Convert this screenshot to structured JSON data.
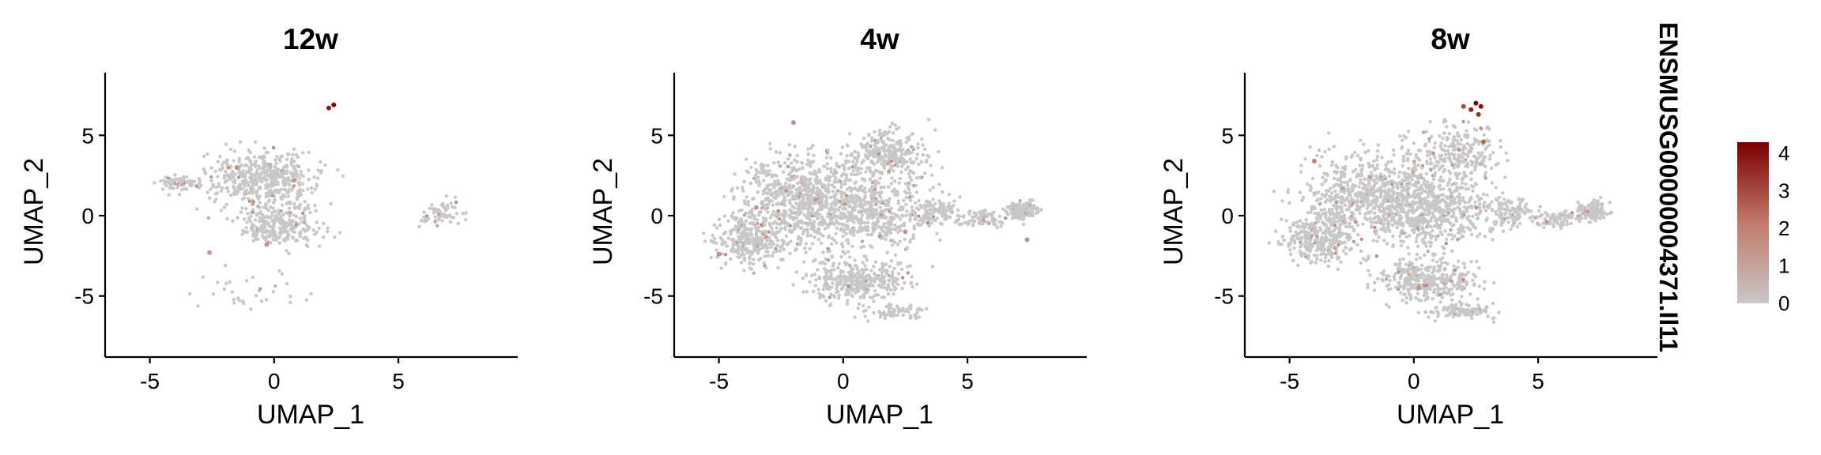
{
  "colors": {
    "low": "#c8c8c8",
    "high": "#7a0000",
    "axis": "#000000",
    "background": "#ffffff"
  },
  "legend": {
    "title": "ENSMUSG00000004371.Il11",
    "ticks": [
      "4",
      "3",
      "2",
      "1",
      "0"
    ],
    "placement": "right"
  },
  "chart_data": [
    {
      "type": "scatter",
      "title": "12w",
      "xlabel": "UMAP_1",
      "ylabel": "UMAP_2",
      "xlim": [
        -6.8,
        9.8
      ],
      "ylim": [
        -8.8,
        8.9
      ],
      "xticks": [
        "-5",
        "0",
        "5"
      ],
      "yticks": [
        "-5",
        "0",
        "5"
      ],
      "color_scale": [
        0,
        4.3
      ],
      "point_density": 0.35,
      "high_expression_points": [
        {
          "x": 2.4,
          "y": 6.9,
          "value": 4.2
        },
        {
          "x": 2.2,
          "y": 6.7,
          "value": 3.8
        },
        {
          "x": -1.5,
          "y": 3.0,
          "value": 1.5
        },
        {
          "x": 0.8,
          "y": 2.2,
          "value": 1.4
        },
        {
          "x": -0.3,
          "y": -1.8,
          "value": 1.3
        },
        {
          "x": -2.6,
          "y": -2.3,
          "value": 1.2
        }
      ]
    },
    {
      "type": "scatter",
      "title": "4w",
      "xlabel": "UMAP_1",
      "ylabel": "UMAP_2",
      "xlim": [
        -6.8,
        9.8
      ],
      "ylim": [
        -8.8,
        8.9
      ],
      "xticks": [
        "-5",
        "0",
        "5"
      ],
      "yticks": [
        "-5",
        "0",
        "5"
      ],
      "color_scale": [
        0,
        4.3
      ],
      "point_density": 1.0,
      "high_expression_points": [
        {
          "x": -5.0,
          "y": -2.4,
          "value": 1.6
        },
        {
          "x": -2.0,
          "y": 5.8,
          "value": 1.5
        },
        {
          "x": 2.5,
          "y": -1.0,
          "value": 1.4
        },
        {
          "x": 7.4,
          "y": -1.5,
          "value": 1.4
        },
        {
          "x": -3.5,
          "y": 0.5,
          "value": 1.3
        }
      ]
    },
    {
      "type": "scatter",
      "title": "8w",
      "xlabel": "UMAP_1",
      "ylabel": "UMAP_2",
      "xlim": [
        -6.8,
        9.8
      ],
      "ylim": [
        -8.8,
        8.9
      ],
      "xticks": [
        "-5",
        "0",
        "5"
      ],
      "yticks": [
        "-5",
        "0",
        "5"
      ],
      "color_scale": [
        0,
        4.3
      ],
      "point_density": 1.0,
      "high_expression_points": [
        {
          "x": 2.5,
          "y": 7.0,
          "value": 4.3
        },
        {
          "x": 2.7,
          "y": 6.8,
          "value": 4.0
        },
        {
          "x": 2.3,
          "y": 6.6,
          "value": 3.7
        },
        {
          "x": 2.6,
          "y": 6.3,
          "value": 3.4
        },
        {
          "x": 2.0,
          "y": 6.8,
          "value": 3.0
        },
        {
          "x": 2.8,
          "y": 4.6,
          "value": 2.5
        },
        {
          "x": -4.0,
          "y": 3.4,
          "value": 1.8
        },
        {
          "x": 0.2,
          "y": -4.5,
          "value": 1.3
        }
      ]
    }
  ]
}
